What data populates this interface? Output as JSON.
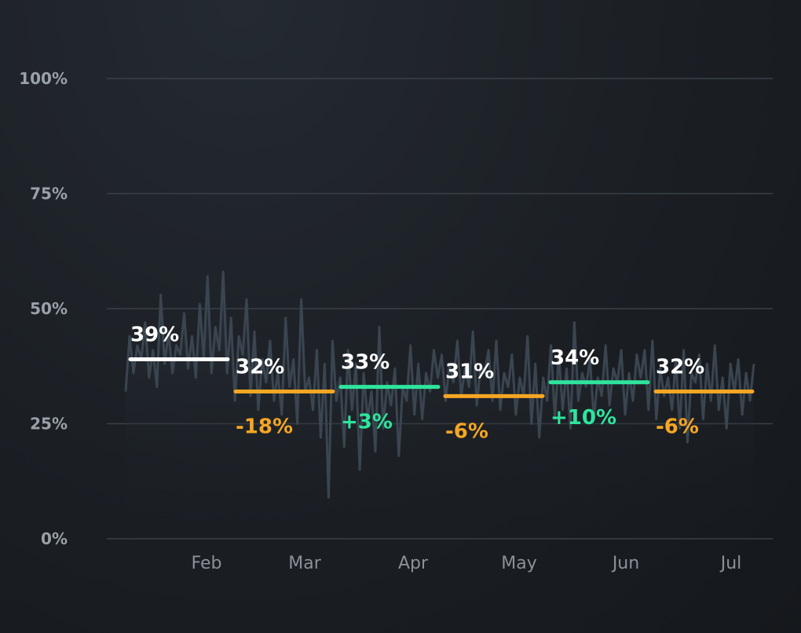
{
  "chart_data": {
    "type": "line",
    "title": "",
    "xlabel": "",
    "ylabel": "",
    "ylim": [
      0,
      100
    ],
    "yticks": [
      "0%",
      "25%",
      "50%",
      "75%",
      "100%"
    ],
    "yticks_values": [
      0,
      25,
      50,
      75,
      100
    ],
    "grid": true,
    "xticks": [
      "Feb",
      "Mar",
      "Apr",
      "May",
      "Jun",
      "Jul"
    ],
    "period_colors": {
      "base": "#ffffff",
      "down": "#f5a623",
      "up": "#2ee59d"
    },
    "periods": [
      {
        "label": "39%",
        "value": 39,
        "change": "",
        "trend": "base"
      },
      {
        "label": "32%",
        "value": 32,
        "change": "-18%",
        "trend": "down"
      },
      {
        "label": "33%",
        "value": 33,
        "change": "+3%",
        "trend": "up"
      },
      {
        "label": "31%",
        "value": 31,
        "change": "-6%",
        "trend": "down"
      },
      {
        "label": "34%",
        "value": 34,
        "change": "+10%",
        "trend": "up"
      },
      {
        "label": "32%",
        "value": 32,
        "change": "-6%",
        "trend": "down"
      }
    ],
    "daily_series": [
      32,
      44,
      36,
      42,
      39,
      47,
      35,
      41,
      33,
      53,
      38,
      45,
      36,
      42,
      40,
      49,
      37,
      44,
      35,
      51,
      39,
      57,
      36,
      46,
      41,
      58,
      36,
      48,
      30,
      44,
      40,
      52,
      31,
      45,
      28,
      39,
      34,
      43,
      30,
      36,
      27,
      48,
      33,
      39,
      25,
      52,
      32,
      35,
      28,
      41,
      22,
      38,
      9,
      43,
      30,
      35,
      20,
      41,
      28,
      38,
      15,
      36,
      26,
      32,
      19,
      46,
      24,
      34,
      29,
      37,
      18,
      33,
      30,
      42,
      27,
      38,
      26,
      36,
      32,
      41,
      35,
      40,
      30,
      38,
      34,
      43,
      31,
      37,
      33,
      45,
      29,
      38,
      36,
      41,
      30,
      43,
      28,
      36,
      33,
      40,
      27,
      35,
      31,
      44,
      25,
      38,
      22,
      35,
      30,
      42,
      26,
      40,
      28,
      37,
      24,
      47,
      30,
      36,
      33,
      39,
      26,
      35,
      31,
      42,
      29,
      37,
      34,
      41,
      27,
      36,
      30,
      40,
      35,
      41,
      28,
      43,
      26,
      37,
      31,
      35,
      28,
      39,
      24,
      41,
      21,
      36,
      34,
      40,
      26,
      38,
      30,
      42,
      28,
      35,
      24,
      38,
      32,
      39,
      27,
      36,
      30,
      38
    ]
  }
}
